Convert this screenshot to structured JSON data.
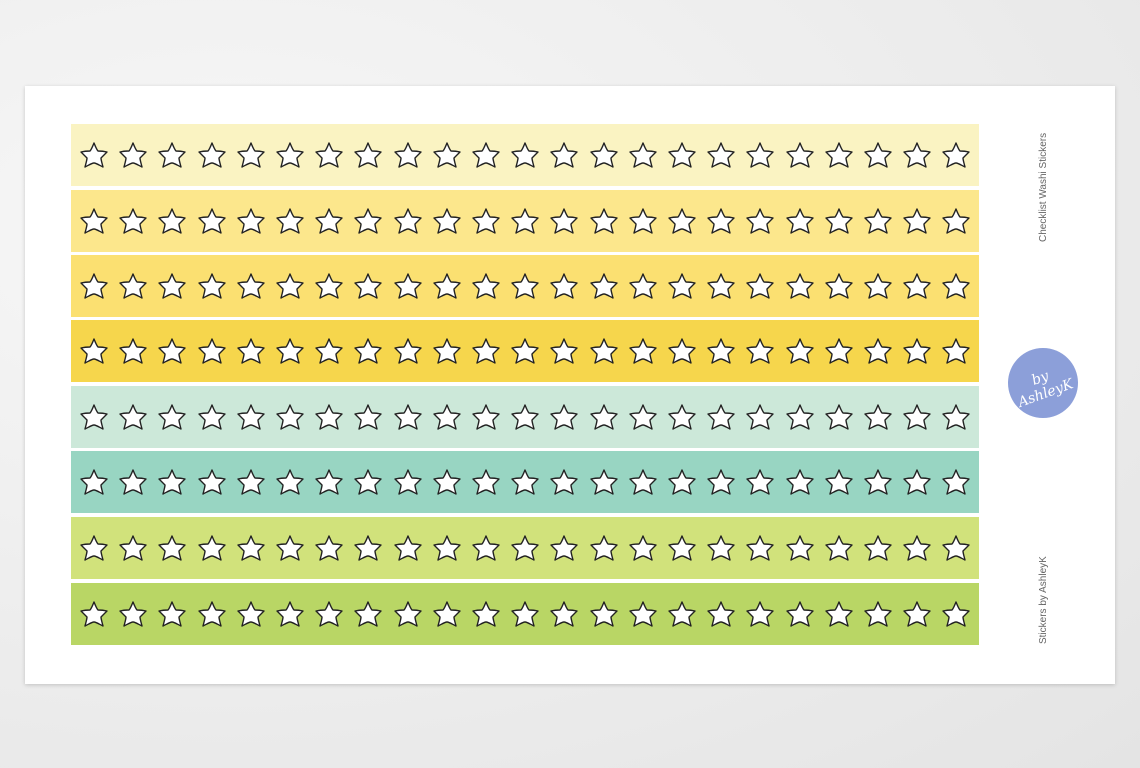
{
  "sheet": {
    "title": "Checklist Washi Stickers",
    "brand": "Stickers by AshleyK",
    "logo_text": "by AshleyK",
    "logo_color": "#8c9fd9",
    "stars_per_strip": 23,
    "star_icon": "star-outline-icon",
    "strips": [
      {
        "color": "#faf3c2"
      },
      {
        "color": "#fce78c"
      },
      {
        "color": "#fbe071"
      },
      {
        "color": "#f6d64c"
      },
      {
        "color": "#cce8d9"
      },
      {
        "color": "#98d5c2"
      },
      {
        "color": "#d1e27b"
      },
      {
        "color": "#b9d665"
      }
    ]
  }
}
